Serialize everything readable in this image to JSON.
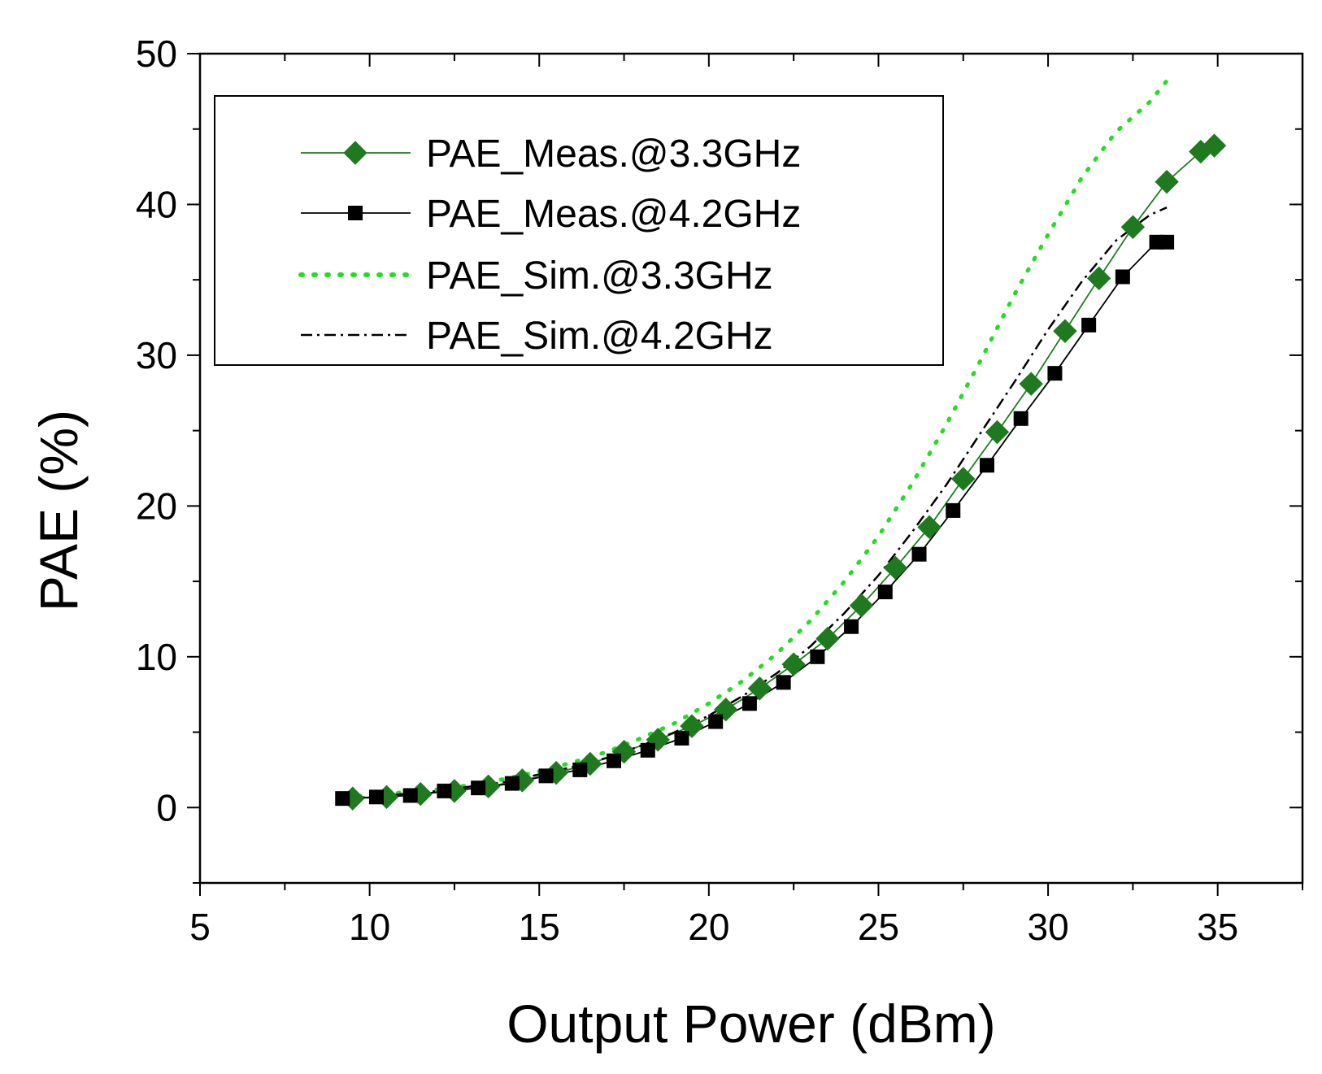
{
  "chart_data": {
    "type": "line",
    "title": "",
    "xlabel": "Output Power (dBm)",
    "ylabel": "PAE (%)",
    "xlim": [
      5,
      37.5
    ],
    "ylim": [
      -5,
      50
    ],
    "xticks": [
      5,
      10,
      15,
      20,
      25,
      30,
      35
    ],
    "yticks": [
      0,
      10,
      20,
      30,
      40,
      50
    ],
    "xtick_labels": [
      "5",
      "10",
      "15",
      "20",
      "25",
      "30",
      "35"
    ],
    "ytick_labels": [
      "0",
      "10",
      "20",
      "30",
      "40",
      "50"
    ],
    "grid": false,
    "legend_position": "top-left",
    "series": [
      {
        "name": "PAE_Meas.@3.3GHz",
        "style": "line-diamond",
        "color": "#1f7a1f",
        "x": [
          9.5,
          10.5,
          11.5,
          12.5,
          13.5,
          14.5,
          15.5,
          16.5,
          17.5,
          18.5,
          19.5,
          20.5,
          21.5,
          22.5,
          23.5,
          24.5,
          25.5,
          26.5,
          27.5,
          28.5,
          29.5,
          30.5,
          31.5,
          32.5,
          33.5,
          34.5,
          34.9
        ],
        "y": [
          0.6,
          0.7,
          0.9,
          1.1,
          1.4,
          1.8,
          2.3,
          2.9,
          3.7,
          4.5,
          5.4,
          6.5,
          7.9,
          9.5,
          11.2,
          13.4,
          15.9,
          18.6,
          21.8,
          24.9,
          28.1,
          31.6,
          35.1,
          38.5,
          41.5,
          43.5,
          43.9
        ]
      },
      {
        "name": "PAE_Meas.@4.2GHz",
        "style": "line-square",
        "color": "#000000",
        "x": [
          9.2,
          10.2,
          11.2,
          12.2,
          13.2,
          14.2,
          15.2,
          16.2,
          17.2,
          18.2,
          19.2,
          20.2,
          21.2,
          22.2,
          23.2,
          24.2,
          25.2,
          26.2,
          27.2,
          28.2,
          29.2,
          30.2,
          31.2,
          32.2,
          33.2,
          33.5
        ],
        "y": [
          0.6,
          0.7,
          0.8,
          1.1,
          1.3,
          1.6,
          2.1,
          2.5,
          3.1,
          3.8,
          4.6,
          5.7,
          6.9,
          8.3,
          10.0,
          12.0,
          14.3,
          16.8,
          19.7,
          22.7,
          25.8,
          28.8,
          32.0,
          35.2,
          37.5,
          37.5
        ]
      },
      {
        "name": "PAE_Sim.@3.3GHz",
        "style": "dotted",
        "color": "#22dd22",
        "x": [
          9.3,
          10,
          11,
          12,
          13,
          14,
          15,
          16,
          17,
          18,
          19,
          20,
          21,
          22,
          23,
          24,
          25,
          26,
          27,
          28,
          29,
          30,
          31,
          32,
          33,
          33.5
        ],
        "y": [
          0.7,
          0.8,
          1.0,
          1.2,
          1.5,
          1.9,
          2.4,
          3.0,
          3.7,
          4.6,
          5.6,
          6.9,
          8.4,
          10.2,
          12.4,
          15.0,
          18.0,
          21.5,
          25.4,
          29.6,
          34.0,
          38.0,
          41.8,
          44.8,
          46.8,
          48.2
        ]
      },
      {
        "name": "PAE_Sim.@4.2GHz",
        "style": "dash-dot",
        "color": "#000000",
        "x": [
          9.3,
          10,
          11,
          12,
          13,
          14,
          15,
          16,
          17,
          18,
          19,
          20,
          21,
          22,
          23,
          24,
          25,
          26,
          27,
          28,
          29,
          30,
          31,
          32,
          33,
          33.5
        ],
        "y": [
          0.6,
          0.7,
          0.9,
          1.1,
          1.4,
          1.7,
          2.2,
          2.7,
          3.3,
          4.1,
          5.0,
          6.1,
          7.4,
          8.9,
          10.7,
          12.9,
          15.4,
          18.3,
          21.4,
          24.8,
          28.2,
          31.7,
          34.9,
          37.6,
          39.3,
          39.8
        ]
      }
    ]
  }
}
